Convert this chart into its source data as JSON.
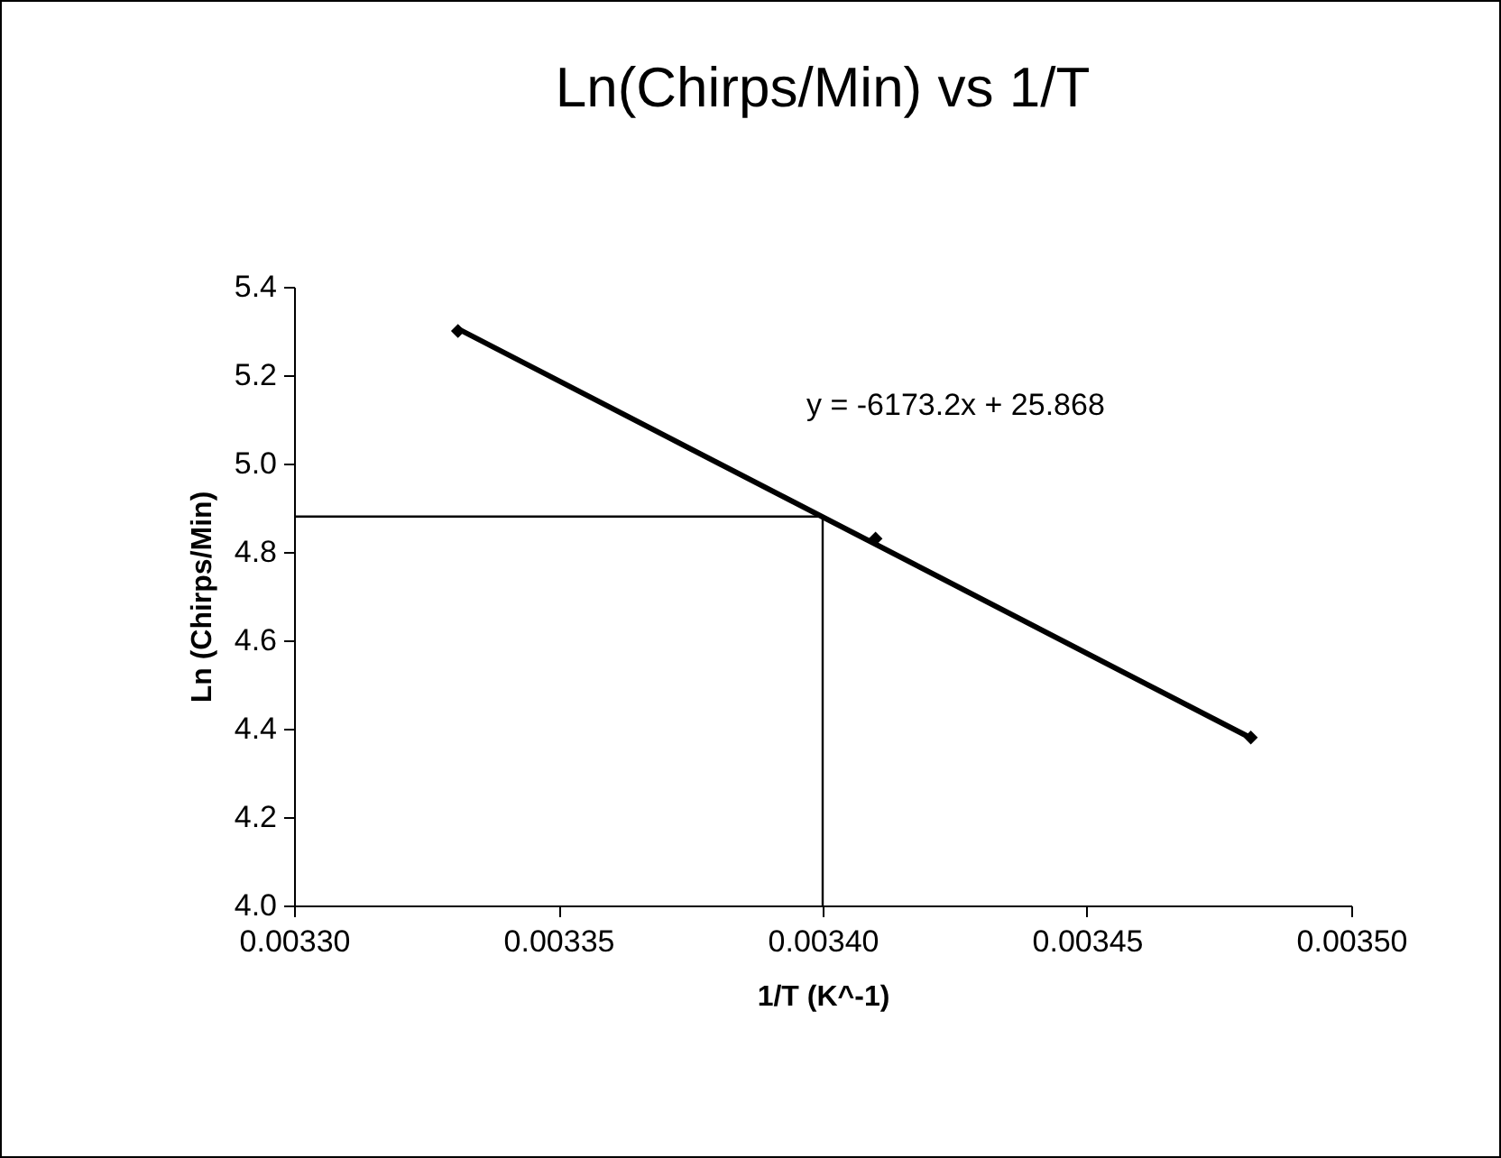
{
  "chart_data": {
    "type": "scatter",
    "title": "Ln(Chirps/Min) vs 1/T",
    "xlabel": "1/T (K^-1)",
    "ylabel": "Ln (Chirps/Min)",
    "annotations": [
      "y = -6173.2x + 25.868"
    ],
    "series": [
      {
        "color": "#000000",
        "marker": "diamond",
        "x": [
          0.003331,
          0.00341,
          0.003481
        ],
        "values": [
          5.3,
          4.83,
          4.38
        ]
      },
      {
        "type": "line",
        "color": "#000000",
        "x": [
          0.003331,
          0.003481
        ],
        "values": [
          5.305,
          4.379
        ]
      },
      {
        "type": "line",
        "color": "#000000",
        "x": [
          0.0033,
          0.0034,
          0.0034
        ],
        "values": [
          4.88,
          4.88,
          4.0
        ]
      }
    ],
    "xlim": [
      0.0033,
      0.0035
    ],
    "ylim": [
      4.0,
      5.4
    ],
    "xticks": [
      {
        "value": 0.0033,
        "label": "0.00330"
      },
      {
        "value": 0.00335,
        "label": "0.00335"
      },
      {
        "value": 0.0034,
        "label": "0.00340"
      },
      {
        "value": 0.00345,
        "label": "0.00345"
      },
      {
        "value": 0.0035,
        "label": "0.00350"
      }
    ],
    "yticks": [
      {
        "value": 4.0,
        "label": "4.0"
      },
      4.2,
      4.4,
      4.6,
      4.8,
      {
        "value": 5.0,
        "label": "5.0"
      },
      5.2,
      5.4
    ],
    "grid": false
  }
}
